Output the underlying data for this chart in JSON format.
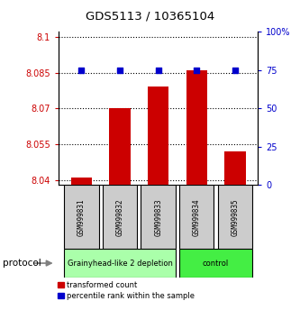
{
  "title": "GDS5113 / 10365104",
  "samples": [
    "GSM999831",
    "GSM999832",
    "GSM999833",
    "GSM999834",
    "GSM999835"
  ],
  "red_values": [
    8.041,
    8.07,
    8.079,
    8.086,
    8.052
  ],
  "blue_values": [
    75,
    75,
    75,
    75,
    75
  ],
  "ylim_left": [
    8.038,
    8.102
  ],
  "ylim_right": [
    0,
    100
  ],
  "yticks_left": [
    8.04,
    8.055,
    8.07,
    8.085,
    8.1
  ],
  "yticks_right": [
    0,
    25,
    50,
    75,
    100
  ],
  "ytick_labels_left": [
    "8.04",
    "8.055",
    "8.07",
    "8.085",
    "8.1"
  ],
  "ytick_labels_right": [
    "0",
    "25",
    "50",
    "75",
    "100%"
  ],
  "groups": [
    {
      "label": "Grainyhead-like 2 depletion",
      "indices": [
        0,
        1,
        2
      ],
      "color": "#aaffaa"
    },
    {
      "label": "control",
      "indices": [
        3,
        4
      ],
      "color": "#44ee44"
    }
  ],
  "bar_color": "#cc0000",
  "dot_color": "#0000cc",
  "bar_bottom": 8.038,
  "bar_width": 0.55,
  "dot_size": 18,
  "grid_color": "#000000",
  "xlabel_color_left": "#cc0000",
  "xlabel_color_right": "#0000cc",
  "protocol_label": "protocol",
  "sample_box_color": "#cccccc",
  "legend_labels": [
    "transformed count",
    "percentile rank within the sample"
  ]
}
